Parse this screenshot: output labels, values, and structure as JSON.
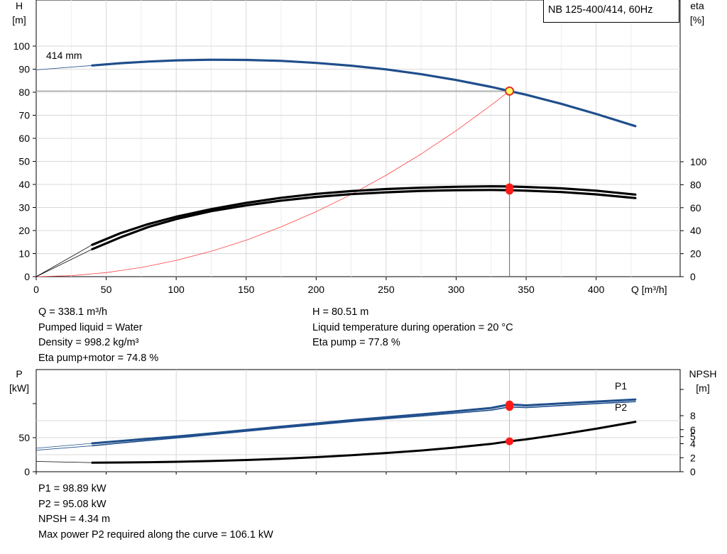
{
  "chart_data": [
    {
      "type": "line",
      "title": "NB 125-400/414, 60Hz",
      "xlabel": "Q [m³/h]",
      "ylabel": "H\n[m]",
      "y2label": "eta\n[%]",
      "xlim": [
        0,
        460
      ],
      "ylim": [
        0,
        110
      ],
      "y2lim": [
        0,
        100
      ],
      "grid": true,
      "x_ticks": [
        0,
        50,
        100,
        150,
        200,
        250,
        300,
        350,
        400
      ],
      "y_ticks": [
        0,
        10,
        20,
        30,
        40,
        50,
        60,
        70,
        80,
        90,
        100
      ],
      "y2_ticks": [
        0,
        20,
        40,
        60,
        80,
        100
      ],
      "impeller_label": "414 mm",
      "operating_point": {
        "Q": 338.1,
        "H": 80.51,
        "eta_pump": 77.8,
        "eta_pump_motor": 74.8
      },
      "series": [
        {
          "name": "H",
          "axis": "left",
          "color": "#1f4e8c",
          "x": [
            0,
            40,
            60,
            80,
            100,
            125,
            150,
            175,
            200,
            225,
            250,
            275,
            300,
            325,
            338.1,
            350,
            375,
            400,
            428
          ],
          "y": [
            89.7,
            91.6,
            92.6,
            93.3,
            93.8,
            94.1,
            94.0,
            93.6,
            92.7,
            91.5,
            89.9,
            87.8,
            85.3,
            82.3,
            80.51,
            78.9,
            75.0,
            70.6,
            65.3
          ]
        },
        {
          "name": "Eta pump",
          "axis": "left",
          "color": "#000000",
          "x": [
            0,
            40,
            60,
            80,
            100,
            125,
            150,
            175,
            200,
            225,
            250,
            275,
            300,
            325,
            338.1,
            350,
            375,
            400,
            428
          ],
          "y": [
            0,
            13.8,
            18.8,
            22.8,
            26.0,
            29.3,
            32.0,
            34.2,
            35.9,
            37.1,
            38.0,
            38.6,
            39.0,
            39.2,
            39.1,
            38.9,
            38.3,
            37.3,
            35.6
          ]
        },
        {
          "name": "Eta pump+motor",
          "axis": "left",
          "color": "#000000",
          "x": [
            0,
            40,
            60,
            80,
            100,
            125,
            150,
            175,
            200,
            225,
            250,
            275,
            300,
            325,
            338.1,
            350,
            375,
            400,
            428
          ],
          "y": [
            0,
            11.9,
            17.0,
            21.5,
            25.0,
            28.4,
            30.9,
            33.0,
            34.6,
            35.8,
            36.6,
            37.2,
            37.5,
            37.6,
            37.5,
            37.3,
            36.7,
            35.7,
            34.1
          ]
        },
        {
          "name": "System curve",
          "axis": "left",
          "color": "#ff4040",
          "x": [
            0,
            25,
            50,
            75,
            100,
            125,
            150,
            175,
            200,
            225,
            250,
            275,
            300,
            325,
            338.1
          ],
          "y": [
            0,
            0.44,
            1.76,
            3.96,
            7.04,
            11.0,
            15.8,
            21.6,
            28.2,
            35.6,
            44.0,
            53.2,
            63.3,
            74.4,
            80.51
          ]
        }
      ]
    },
    {
      "type": "line",
      "ylabel": "P\n[kW]",
      "y2label": "NPSH\n[m]",
      "xlim": [
        0,
        460
      ],
      "ylim": [
        0,
        130
      ],
      "y2lim": [
        0,
        15
      ],
      "grid": true,
      "y_ticks": [
        0,
        50
      ],
      "y2_ticks": [
        0,
        2,
        4,
        5,
        6,
        8
      ],
      "series": [
        {
          "name": "P1",
          "axis": "left",
          "color": "#1f4e8c",
          "x": [
            0,
            40,
            60,
            80,
            100,
            125,
            150,
            175,
            200,
            225,
            250,
            275,
            300,
            325,
            338.1,
            350,
            375,
            400,
            428
          ],
          "y": [
            34.5,
            41.7,
            45.1,
            48.4,
            51.7,
            56.3,
            61.2,
            66.1,
            70.8,
            75.6,
            80.0,
            84.3,
            88.8,
            93.6,
            98.89,
            97.4,
            100.2,
            103.0,
            106.0
          ]
        },
        {
          "name": "P2",
          "axis": "left",
          "color": "#1f4e8c",
          "x": [
            0,
            40,
            60,
            80,
            100,
            125,
            150,
            175,
            200,
            225,
            250,
            275,
            300,
            325,
            338.1,
            350,
            375,
            400,
            428
          ],
          "y": [
            31.6,
            38.1,
            42.1,
            45.9,
            49.5,
            54.5,
            59.5,
            64.4,
            69.0,
            73.6,
            77.8,
            81.9,
            86.1,
            90.4,
            95.08,
            94.2,
            97.2,
            100.1,
            102.9
          ]
        },
        {
          "name": "NPSH",
          "axis": "right",
          "color": "#000000",
          "x": [
            0,
            40,
            60,
            80,
            100,
            125,
            150,
            175,
            200,
            225,
            250,
            275,
            300,
            325,
            338.1,
            350,
            375,
            400,
            428
          ],
          "y": [
            1.47,
            1.3,
            1.32,
            1.36,
            1.42,
            1.53,
            1.67,
            1.85,
            2.08,
            2.35,
            2.67,
            3.03,
            3.46,
            3.97,
            4.34,
            4.62,
            5.34,
            6.14,
            7.12
          ]
        }
      ]
    }
  ],
  "upper_info": {
    "left": [
      "Q = 338.1 m³/h",
      "Pumped liquid = Water",
      "Density = 998.2 kg/m³",
      "Eta pump+motor = 74.8 %"
    ],
    "right": [
      "H = 80.51 m",
      "Liquid temperature during operation = 20 °C",
      "Eta pump = 77.8 %"
    ]
  },
  "lower_info": [
    "P1 = 98.89 kW",
    "P2 = 95.08 kW",
    "NPSH = 4.34 m",
    "Max power P2 required along the curve = 106.1 kW"
  ],
  "labels": {
    "upper_left_axis": [
      "H",
      "[m]"
    ],
    "upper_right_axis": [
      "eta",
      "[%]"
    ],
    "lower_left_axis": [
      "P",
      "[kW]"
    ],
    "lower_right_axis": [
      "NPSH",
      "[m]"
    ],
    "x_axis": "Q [m³/h]",
    "p1": "P1",
    "p2": "P2"
  }
}
